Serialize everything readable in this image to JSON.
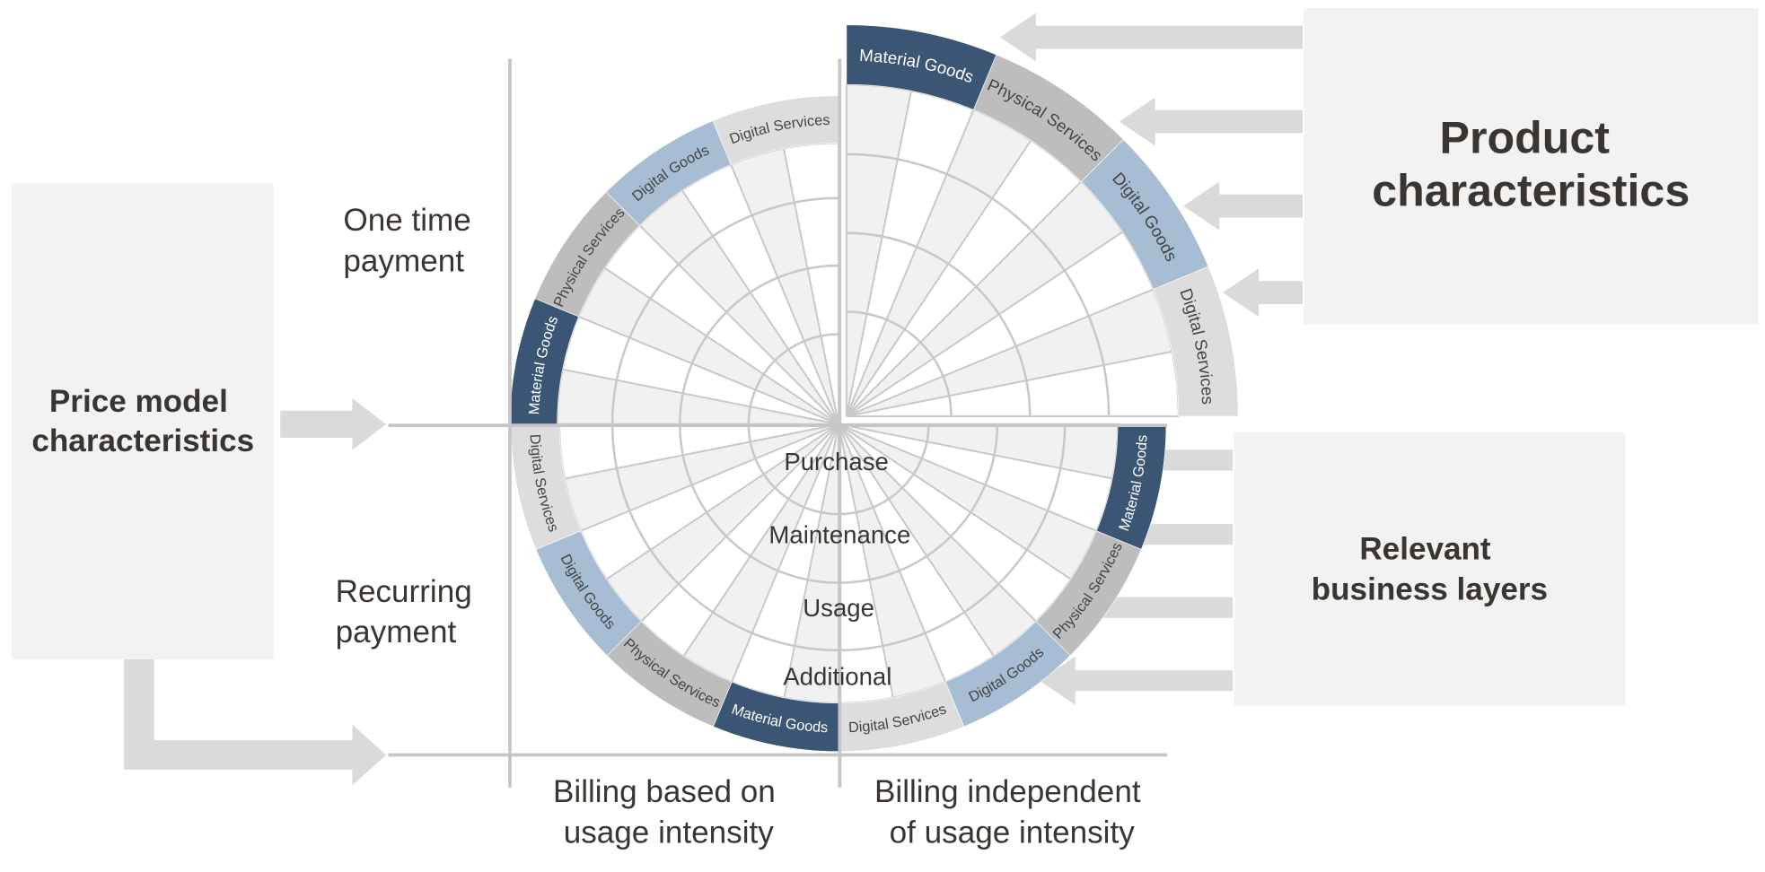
{
  "price_model_box": {
    "line1": "Price model",
    "line2": "characteristics"
  },
  "product_box": {
    "line1": "Product",
    "line2": "characteristics"
  },
  "business_box": {
    "line1": "Relevant",
    "line2": "business layers"
  },
  "axis_labels": {
    "one_time": {
      "line1": "One time",
      "line2": "payment"
    },
    "recurring": {
      "line1": "Recurring",
      "line2": "payment"
    },
    "billing_usage": {
      "line1": "Billing based on",
      "line2": "usage intensity"
    },
    "billing_independent": {
      "line1": "Billing independent",
      "line2": "of usage intensity"
    }
  },
  "business_layers": [
    "Purchase",
    "Maintenance",
    "Usage",
    "Additional"
  ],
  "quadrants": [
    {
      "id": "top-left",
      "segments": [
        "Material Goods",
        "Physical Services",
        "Digital Goods",
        "Digital Services"
      ]
    },
    {
      "id": "top-right",
      "segments": [
        "Material Goods",
        "Physical Services",
        "Digital Goods",
        "Digital Services"
      ]
    },
    {
      "id": "bottom-right",
      "segments": [
        "Material Goods",
        "Physical Services",
        "Digital Goods",
        "Digital Services"
      ]
    },
    {
      "id": "bottom-left",
      "segments": [
        "Material Goods",
        "Physical Services",
        "Digital Goods",
        "Digital Services"
      ]
    }
  ],
  "colors": {
    "Material Goods": "#3b5575",
    "Physical Services": "#bdbdbd",
    "Digital Goods": "#a7bdd4",
    "Digital Services": "#dddddd",
    "wedge": "#f1f1f1",
    "grid": "#c8c8c8",
    "box": "#f2f2f2",
    "arrow": "#dadada"
  }
}
